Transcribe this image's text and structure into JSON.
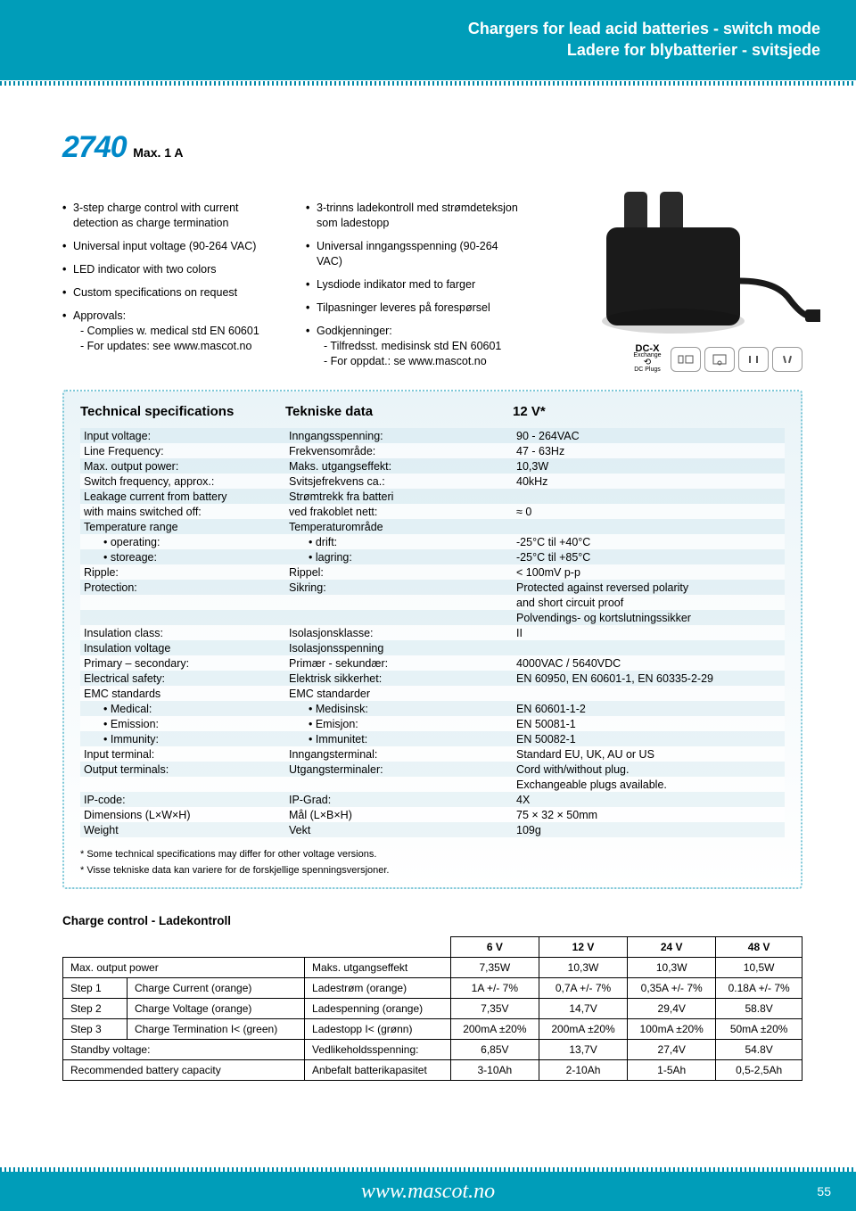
{
  "header": {
    "line1": "Chargers for lead acid batteries - switch mode",
    "line2": "Ladere for blybatterier - svitsjede"
  },
  "model": {
    "number": "2740",
    "subtitle": "Max. 1 A"
  },
  "features_en": [
    {
      "t": "3-step charge control with current detection as charge termination"
    },
    {
      "t": "Universal input voltage (90-264 VAC)"
    },
    {
      "t": "LED indicator with two colors"
    },
    {
      "t": "Custom specifications on request"
    },
    {
      "t": "Approvals:",
      "subs": [
        "- Complies w. medical std EN 60601",
        "- For updates: see www.mascot.no"
      ]
    }
  ],
  "features_no": [
    {
      "t": "3-trinns ladekontroll med strømdeteksjon som ladestopp"
    },
    {
      "t": "Universal inngangsspenning (90-264 VAC)"
    },
    {
      "t": "Lysdiode indikator med to farger"
    },
    {
      "t": "Tilpasninger leveres på forespørsel"
    },
    {
      "t": "Godkjenninger:",
      "subs": [
        "- Tilfredsst. medisinsk std EN 60601",
        "- For oppdat.: se www.mascot.no"
      ]
    }
  ],
  "dcx": {
    "title": "DC-X",
    "sub1": "Exchange",
    "sub2": "DC Plugs"
  },
  "specs_header": {
    "c1": "Technical specifications",
    "c2": "Tekniske data",
    "c3": "12 V*"
  },
  "specs": [
    {
      "en": "Input voltage:",
      "no": "Inngangsspenning:",
      "v": "90 - 264VAC"
    },
    {
      "en": "Line Frequency:",
      "no": "Frekvensområde:",
      "v": "47 - 63Hz"
    },
    {
      "en": "Max. output power:",
      "no": "Maks. utgangseffekt:",
      "v": "10,3W"
    },
    {
      "en": "Switch frequency, approx.:",
      "no": "Svitsjefrekvens ca.:",
      "v": "40kHz"
    },
    {
      "en": "Leakage current from battery",
      "no": "Strømtrekk fra batteri",
      "v": ""
    },
    {
      "en": "with mains switched off:",
      "no": "ved frakoblet nett:",
      "v": "≈ 0"
    },
    {
      "en": "Temperature range",
      "no": "Temperaturområde",
      "v": ""
    },
    {
      "en": "• operating:",
      "no": "• drift:",
      "v": "-25°C til +40°C",
      "indent": true
    },
    {
      "en": "• storeage:",
      "no": "• lagring:",
      "v": "-25°C til +85°C",
      "indent": true
    },
    {
      "en": "Ripple:",
      "no": "Rippel:",
      "v": "< 100mV p-p"
    },
    {
      "en": "Protection:",
      "no": "Sikring:",
      "v": "Protected against reversed polarity"
    },
    {
      "en": "",
      "no": "",
      "v": "and short circuit proof"
    },
    {
      "en": "",
      "no": "",
      "v": "Polvendings- og kortslutningssikker"
    },
    {
      "en": "Insulation class:",
      "no": "Isolasjonsklasse:",
      "v": "II"
    },
    {
      "en": "Insulation voltage",
      "no": "Isolasjonsspenning",
      "v": ""
    },
    {
      "en": "Primary – secondary:",
      "no": "Primær - sekundær:",
      "v": "4000VAC / 5640VDC"
    },
    {
      "en": "Electrical safety:",
      "no": "Elektrisk sikkerhet:",
      "v": "EN 60950, EN 60601-1, EN 60335-2-29"
    },
    {
      "en": "EMC standards",
      "no": "EMC standarder",
      "v": ""
    },
    {
      "en": "• Medical:",
      "no": "• Medisinsk:",
      "v": "EN 60601-1-2",
      "indent": true
    },
    {
      "en": "• Emission:",
      "no": "• Emisjon:",
      "v": "EN 50081-1",
      "indent": true
    },
    {
      "en": "• Immunity:",
      "no": "• Immunitet:",
      "v": "EN 50082-1",
      "indent": true
    },
    {
      "en": "Input terminal:",
      "no": "Inngangsterminal:",
      "v": "Standard EU, UK, AU or US"
    },
    {
      "en": "Output terminals:",
      "no": "Utgangsterminaler:",
      "v": "Cord with/without plug."
    },
    {
      "en": "",
      "no": "",
      "v": "Exchangeable plugs available."
    },
    {
      "en": "IP-code:",
      "no": "IP-Grad:",
      "v": "4X"
    },
    {
      "en": "Dimensions (L×W×H)",
      "no": "Mål (L×B×H)",
      "v": "75 × 32 × 50mm"
    },
    {
      "en": "Weight",
      "no": "Vekt",
      "v": "109g"
    }
  ],
  "footnotes": [
    "* Some technical specifications may differ for other voltage versions.",
    "* Visse tekniske data kan variere for de forskjellige spenningsversjoner."
  ],
  "charge_control": {
    "title": "Charge control - Ladekontroll",
    "head_cols": [
      "6 V",
      "12 V",
      "24 V",
      "48 V"
    ],
    "rows": [
      {
        "l1": "Max. output power",
        "l2": "",
        "no": "Maks. utgangseffekt",
        "v": [
          "7,35W",
          "10,3W",
          "10,3W",
          "10,5W"
        ],
        "span": true
      },
      {
        "l1": "Step 1",
        "l2": "Charge Current (orange)",
        "no": "Ladestrøm (orange)",
        "v": [
          "1A +/- 7%",
          "0,7A +/- 7%",
          "0,35A +/- 7%",
          "0.18A +/- 7%"
        ]
      },
      {
        "l1": "Step 2",
        "l2": "Charge Voltage (orange)",
        "no": "Ladespenning (orange)",
        "v": [
          "7,35V",
          "14,7V",
          "29,4V",
          "58.8V"
        ]
      },
      {
        "l1": "Step 3",
        "l2": "Charge Termination I< (green)",
        "no": "Ladestopp I< (grønn)",
        "v": [
          "200mA ±20%",
          "200mA ±20%",
          "100mA ±20%",
          "50mA ±20%"
        ]
      },
      {
        "l1": "Standby voltage:",
        "l2": "",
        "no": "Vedlikeholdsspenning:",
        "v": [
          "6,85V",
          "13,7V",
          "27,4V",
          "54.8V"
        ],
        "span": true
      },
      {
        "l1": "Recommended battery capacity",
        "l2": "",
        "no": "Anbefalt batterikapasitet",
        "v": [
          "3-10Ah",
          "2-10Ah",
          "1-5Ah",
          "0,5-2,5Ah"
        ],
        "span": true
      }
    ]
  },
  "footer": {
    "url": "www.mascot.no",
    "page": "55"
  },
  "colors": {
    "teal": "#009db9",
    "blue": "#0088c8"
  }
}
